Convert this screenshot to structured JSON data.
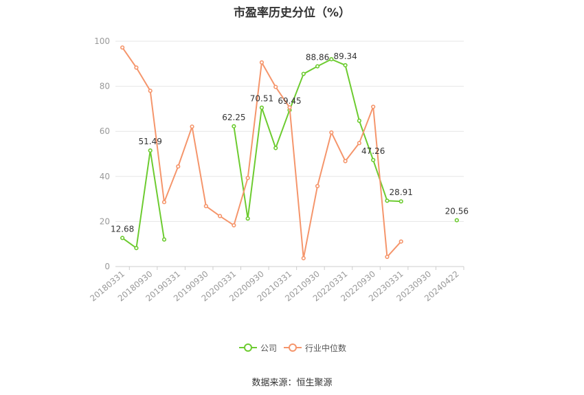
{
  "chart_data": {
    "type": "line",
    "title": "市盈率历史分位（%）",
    "source": "数据来源：恒生聚源",
    "ylim": [
      0,
      100
    ],
    "y_ticks": [
      0,
      20,
      40,
      60,
      80,
      100
    ],
    "x_tick_labels": [
      "20180331",
      "20180930",
      "20190331",
      "20190930",
      "20200331",
      "20200930",
      "20210331",
      "20210930",
      "20220331",
      "20220930",
      "20230331",
      "20230930",
      "20240422"
    ],
    "categories": [
      "20180331",
      "20180630",
      "20180930",
      "20181231",
      "20190331",
      "20190630",
      "20190930",
      "20191231",
      "20200331",
      "20200630",
      "20200930",
      "20201231",
      "20210331",
      "20210630",
      "20210930",
      "20211231",
      "20220331",
      "20220630",
      "20220930",
      "20221231",
      "20230331",
      "20230630",
      "20230930",
      "20231231",
      "20240422"
    ],
    "legend_position": "bottom",
    "grid": true,
    "series": [
      {
        "name": "公司",
        "color": "#6ccb2f",
        "values": [
          12.68,
          8.2,
          51.49,
          12.0,
          null,
          null,
          null,
          null,
          62.25,
          21.3,
          70.51,
          52.6,
          69.45,
          85.5,
          88.86,
          92.0,
          89.34,
          64.7,
          47.26,
          29.2,
          28.91,
          null,
          null,
          null,
          20.56
        ],
        "labels": {
          "0": "12.68",
          "2": "51.49",
          "8": "62.25",
          "10": "70.51",
          "12": "69.45",
          "14": "88.86",
          "16": "89.34",
          "18": "47.26",
          "20": "28.91",
          "24": "20.56"
        }
      },
      {
        "name": "行业中位数",
        "color": "#f5956b",
        "values": [
          97.2,
          88.3,
          78.0,
          28.6,
          44.4,
          62.1,
          26.8,
          22.4,
          18.3,
          39.3,
          90.6,
          79.7,
          70.6,
          3.7,
          35.7,
          59.5,
          46.8,
          54.8,
          70.9,
          4.3,
          11.1,
          null,
          null,
          null,
          null
        ]
      }
    ]
  }
}
